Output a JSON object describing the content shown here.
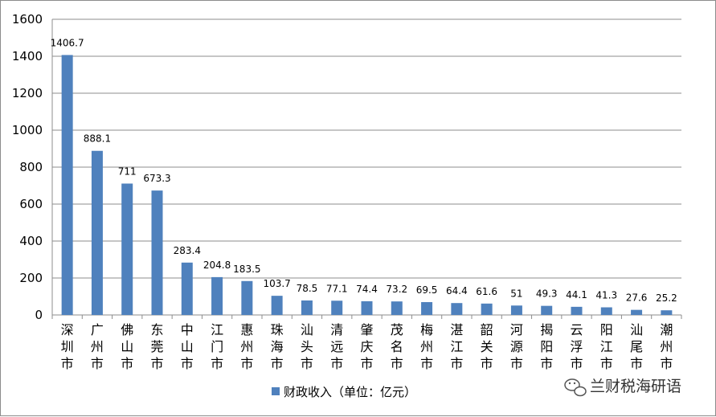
{
  "chart_data": {
    "type": "bar",
    "categories": [
      "深圳市",
      "广州市",
      "佛山市",
      "东莞市",
      "中山市",
      "江门市",
      "惠州市",
      "珠海市",
      "汕头市",
      "清远市",
      "肇庆市",
      "茂名市",
      "梅州市",
      "湛江市",
      "韶关市",
      "河源市",
      "揭阳市",
      "云浮市",
      "阳江市",
      "汕尾市",
      "潮州市"
    ],
    "series": [
      {
        "name": "财政收入（单位：亿元）",
        "values": [
          1406.7,
          888.1,
          711,
          673.3,
          283.4,
          204.8,
          183.5,
          103.7,
          78.5,
          77.1,
          74.4,
          73.2,
          69.5,
          64.4,
          61.6,
          51,
          49.3,
          44.1,
          41.3,
          27.6,
          25.2
        ]
      }
    ],
    "value_labels": [
      "1406.7",
      "888.1",
      "711",
      "673.3",
      "283.4",
      "204.8",
      "183.5",
      "103.7",
      "78.5",
      "77.1",
      "74.4",
      "73.2",
      "69.5",
      "64.4",
      "61.6",
      "51",
      "49.3",
      "44.1",
      "41.3",
      "27.6",
      "25.2"
    ],
    "ylim": [
      0,
      1600
    ],
    "yticks": [
      0,
      200,
      400,
      600,
      800,
      1000,
      1200,
      1400,
      1600
    ],
    "grid": true,
    "legend_position": "bottom",
    "bar_color": "#4f81bd"
  },
  "watermark": {
    "text": "兰财税海研语",
    "icon": "wechat-icon"
  }
}
